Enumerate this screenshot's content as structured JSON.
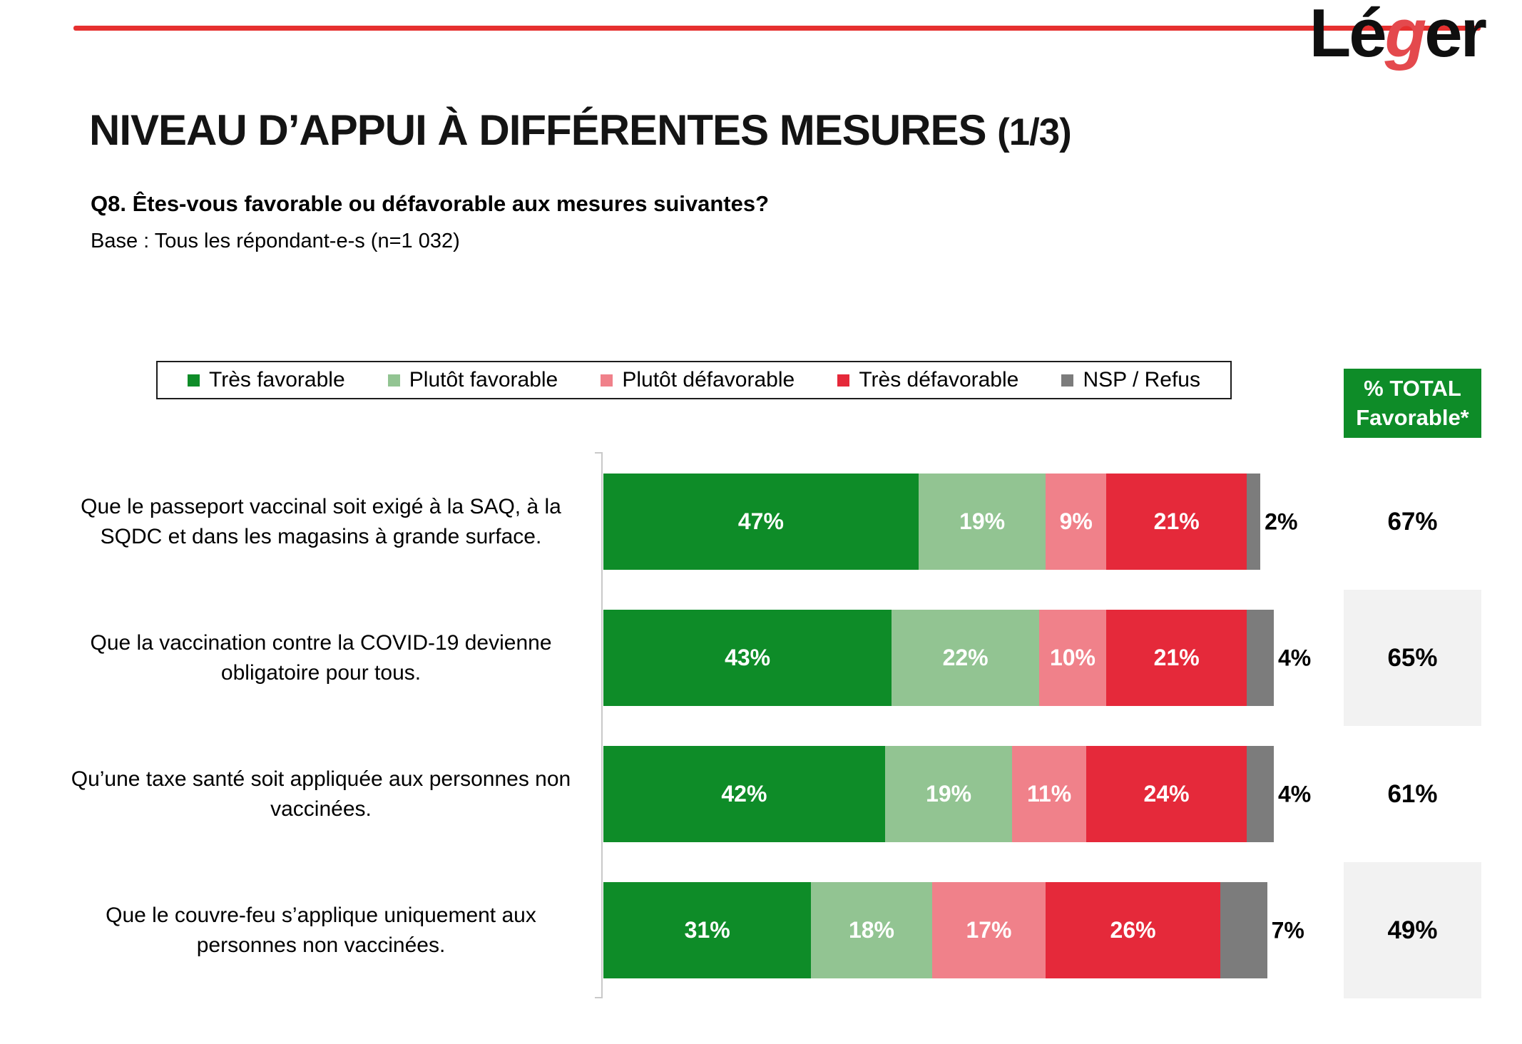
{
  "logo": {
    "pre": "Lé",
    "g": "g",
    "post": "er"
  },
  "header": {
    "title_main": "NIVEAU D’APPUI À DIFFÉRENTES MESURES ",
    "title_suffix": "(1/3)",
    "question": "Q8. Êtes-vous favorable ou défavorable aux mesures suivantes?",
    "base": "Base : Tous les répondant-e-s (n=1 032)"
  },
  "legend": {
    "items": [
      {
        "label": "Très favorable",
        "color": "#0e8c28"
      },
      {
        "label": "Plutôt favorable",
        "color": "#92c492"
      },
      {
        "label": "Plutôt défavorable",
        "color": "#f0818a"
      },
      {
        "label": "Très défavorable",
        "color": "#e5293a"
      },
      {
        "label": "NSP / Refus",
        "color": "#7c7c7c"
      }
    ]
  },
  "total_column": {
    "header": "% TOTAL\nFavorable*",
    "header_bg": "#0e8c28",
    "alt_row_bg": "#f2f2f2"
  },
  "chart_data": {
    "type": "bar",
    "stacked": true,
    "orientation": "horizontal",
    "unit": "%",
    "xlim": [
      0,
      100
    ],
    "grid": false,
    "legend_position": "top",
    "series_names": [
      "Très favorable",
      "Plutôt favorable",
      "Plutôt défavorable",
      "Très défavorable",
      "NSP / Refus"
    ],
    "colors": [
      "#0e8c28",
      "#92c492",
      "#f0818a",
      "#e5293a",
      "#7c7c7c"
    ],
    "rows": [
      {
        "label": "Que le passeport vaccinal soit exigé à la SAQ, à la SQDC et dans les magasins à grande surface.",
        "values": [
          47,
          19,
          9,
          21,
          2
        ],
        "labels": [
          "47%",
          "19%",
          "9%",
          "21%",
          "2%"
        ],
        "total_favorable": 67,
        "total_label": "67%"
      },
      {
        "label": "Que la vaccination contre la COVID-19 devienne obligatoire pour tous.",
        "values": [
          43,
          22,
          10,
          21,
          4
        ],
        "labels": [
          "43%",
          "22%",
          "10%",
          "21%",
          "4%"
        ],
        "total_favorable": 65,
        "total_label": "65%"
      },
      {
        "label": "Qu’une taxe santé soit appliquée aux personnes non vaccinées.",
        "values": [
          42,
          19,
          11,
          24,
          4
        ],
        "labels": [
          "42%",
          "19%",
          "11%",
          "24%",
          "4%"
        ],
        "total_favorable": 61,
        "total_label": "61%"
      },
      {
        "label": "Que le couvre-feu s’applique uniquement aux personnes non vaccinées.",
        "values": [
          31,
          18,
          17,
          26,
          7
        ],
        "labels": [
          "31%",
          "18%",
          "17%",
          "26%",
          "7%"
        ],
        "total_favorable": 49,
        "total_label": "49%"
      }
    ]
  }
}
